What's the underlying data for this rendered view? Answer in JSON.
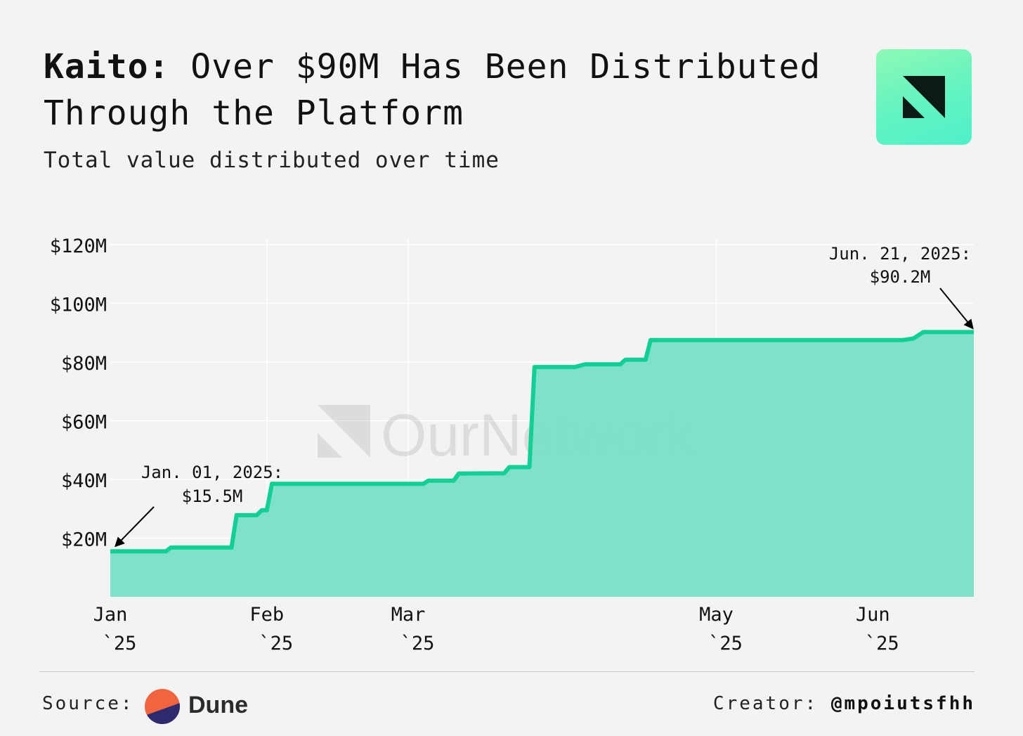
{
  "header": {
    "title_bold": "Kaito:",
    "title_rest": " Over $90M Has Been Distributed Through the Platform",
    "subtitle": "Total value distributed over time"
  },
  "logo": {
    "icon": "ournetwork-logo-icon",
    "color": "#5ef3c2"
  },
  "watermark": "OurNetwork",
  "chart_data": {
    "type": "area",
    "title": "Kaito: Over $90M Has Been Distributed Through the Platform",
    "subtitle": "Total value distributed over time",
    "xlabel": "",
    "ylabel": "",
    "ylim": [
      0,
      120
    ],
    "y_ticks": [
      {
        "value": 20,
        "label": "$20M"
      },
      {
        "value": 40,
        "label": "$40M"
      },
      {
        "value": 60,
        "label": "$60M"
      },
      {
        "value": 80,
        "label": "$80M"
      },
      {
        "value": 100,
        "label": "$100M"
      },
      {
        "value": 120,
        "label": "$120M"
      }
    ],
    "x_ticks": [
      {
        "value": "2025-01-01",
        "line1": "Jan",
        "line2": "`25"
      },
      {
        "value": "2025-02-01",
        "line1": "Feb",
        "line2": "`25"
      },
      {
        "value": "2025-03-01",
        "line1": "Mar",
        "line2": "`25"
      },
      {
        "value": "2025-05-01",
        "line1": "May",
        "line2": "`25"
      },
      {
        "value": "2025-06-01",
        "line1": "Jun",
        "line2": "`25"
      }
    ],
    "x_domain": [
      "2025-01-01",
      "2025-06-21"
    ],
    "grid": true,
    "line_color": "#12cf95",
    "fill_color": "#79dfc6",
    "series": [
      {
        "values": [
          [
            "2025-01-01",
            15.5
          ],
          [
            "2025-01-12",
            15.5
          ],
          [
            "2025-01-13",
            16.8
          ],
          [
            "2025-01-25",
            16.8
          ],
          [
            "2025-01-26",
            27.8
          ],
          [
            "2025-01-30",
            27.8
          ],
          [
            "2025-01-31",
            29.5
          ],
          [
            "2025-02-01",
            29.5
          ],
          [
            "2025-02-02",
            38.5
          ],
          [
            "2025-03-04",
            38.5
          ],
          [
            "2025-03-05",
            39.6
          ],
          [
            "2025-03-10",
            39.6
          ],
          [
            "2025-03-11",
            42.0
          ],
          [
            "2025-03-20",
            42.1
          ],
          [
            "2025-03-21",
            44.2
          ],
          [
            "2025-03-25",
            44.2
          ],
          [
            "2025-03-26",
            78.3
          ],
          [
            "2025-04-03",
            78.3
          ],
          [
            "2025-04-05",
            79.2
          ],
          [
            "2025-04-12",
            79.2
          ],
          [
            "2025-04-13",
            80.8
          ],
          [
            "2025-04-17",
            80.8
          ],
          [
            "2025-04-18",
            87.5
          ],
          [
            "2025-06-07",
            87.5
          ],
          [
            "2025-06-09",
            88.0
          ],
          [
            "2025-06-11",
            90.2
          ],
          [
            "2025-06-21",
            90.2
          ]
        ]
      }
    ],
    "annotations": [
      {
        "date": "2025-01-01",
        "line1": "Jan. 01, 2025:",
        "line2": "$15.5M"
      },
      {
        "date": "2025-06-21",
        "line1": "Jun. 21, 2025:",
        "line2": "$90.2M"
      }
    ]
  },
  "footer": {
    "source_label": "Source:",
    "source_name": "Dune",
    "source_colors": {
      "top": "#f06440",
      "bottom": "#2d2b6d"
    },
    "creator_label": "Creator:",
    "creator_handle": "@mpoiutsfhh"
  }
}
